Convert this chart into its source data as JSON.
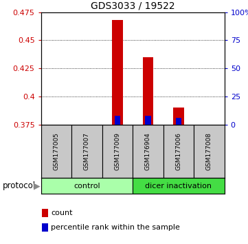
{
  "title": "GDS3033 / 19522",
  "samples": [
    "GSM177005",
    "GSM177007",
    "GSM177009",
    "GSM176904",
    "GSM177006",
    "GSM177008"
  ],
  "groups": [
    "control",
    "control",
    "control",
    "dicer inactivation",
    "dicer inactivation",
    "dicer inactivation"
  ],
  "bar_bottom": 0.375,
  "red_values": [
    0.375,
    0.375,
    0.468,
    0.435,
    0.39,
    0.375
  ],
  "blue_values": [
    0.375,
    0.375,
    0.383,
    0.383,
    0.381,
    0.375
  ],
  "ylim_left": [
    0.375,
    0.475
  ],
  "ylim_right": [
    0,
    100
  ],
  "yticks_left": [
    0.375,
    0.4,
    0.425,
    0.45,
    0.475
  ],
  "yticks_right": [
    0,
    25,
    50,
    75,
    100
  ],
  "ytick_labels_left": [
    "0.375",
    "0.4",
    "0.425",
    "0.45",
    "0.475"
  ],
  "ytick_labels_right": [
    "0",
    "25",
    "50",
    "75",
    "100%"
  ],
  "left_axis_color": "#CC0000",
  "right_axis_color": "#0000CC",
  "bar_width": 0.35,
  "red_color": "#CC0000",
  "blue_color": "#0000CC",
  "sample_bg_color": "#C8C8C8",
  "control_color": "#AAFFAA",
  "dicer_color": "#44DD44",
  "protocol_label": "protocol",
  "legend_count": "count",
  "legend_percentile": "percentile rank within the sample",
  "title_fontsize": 10,
  "tick_fontsize": 8,
  "sample_fontsize": 6.5,
  "proto_fontsize": 8,
  "legend_fontsize": 8
}
